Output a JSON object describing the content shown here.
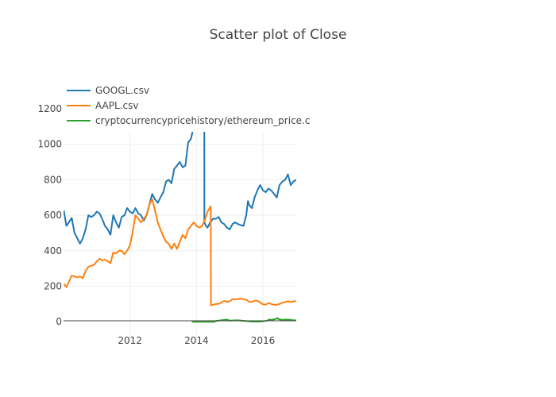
{
  "chart_data": {
    "type": "line",
    "title": "Scatter plot of Close",
    "xlabel": "",
    "ylabel": "",
    "xlim": [
      "2010-01-01",
      "2017-01-01"
    ],
    "ylim": [
      -120,
      1070
    ],
    "x_ticks": [
      "2012",
      "2014",
      "2016"
    ],
    "y_ticks": [
      "0",
      "200",
      "400",
      "600",
      "800",
      "1000",
      "1200"
    ],
    "grid": true,
    "legend_position": "top-left",
    "series": [
      {
        "name": "GOOGL.csv",
        "color": "#1f77b4",
        "points": [
          [
            "2010-01-04",
            626
          ],
          [
            "2010-02-01",
            540
          ],
          [
            "2010-03-01",
            560
          ],
          [
            "2010-04-01",
            585
          ],
          [
            "2010-05-01",
            500
          ],
          [
            "2010-06-01",
            470
          ],
          [
            "2010-07-01",
            440
          ],
          [
            "2010-08-01",
            470
          ],
          [
            "2010-09-01",
            520
          ],
          [
            "2010-10-01",
            600
          ],
          [
            "2010-11-01",
            590
          ],
          [
            "2010-12-01",
            600
          ],
          [
            "2011-01-01",
            620
          ],
          [
            "2011-02-01",
            610
          ],
          [
            "2011-03-01",
            580
          ],
          [
            "2011-04-01",
            540
          ],
          [
            "2011-05-01",
            520
          ],
          [
            "2011-06-01",
            490
          ],
          [
            "2011-07-01",
            600
          ],
          [
            "2011-08-01",
            560
          ],
          [
            "2011-09-01",
            530
          ],
          [
            "2011-10-01",
            590
          ],
          [
            "2011-11-01",
            600
          ],
          [
            "2011-12-01",
            640
          ],
          [
            "2012-01-01",
            620
          ],
          [
            "2012-02-01",
            610
          ],
          [
            "2012-03-01",
            640
          ],
          [
            "2012-04-01",
            610
          ],
          [
            "2012-05-01",
            600
          ],
          [
            "2012-06-01",
            570
          ],
          [
            "2012-07-01",
            600
          ],
          [
            "2012-08-01",
            660
          ],
          [
            "2012-09-01",
            720
          ],
          [
            "2012-10-01",
            690
          ],
          [
            "2012-11-01",
            670
          ],
          [
            "2012-12-01",
            700
          ],
          [
            "2013-01-01",
            730
          ],
          [
            "2013-02-01",
            790
          ],
          [
            "2013-03-01",
            800
          ],
          [
            "2013-04-01",
            780
          ],
          [
            "2013-05-01",
            860
          ],
          [
            "2013-06-01",
            880
          ],
          [
            "2013-07-01",
            900
          ],
          [
            "2013-08-01",
            870
          ],
          [
            "2013-09-01",
            880
          ],
          [
            "2013-10-01",
            1010
          ],
          [
            "2013-11-01",
            1030
          ],
          [
            "2013-12-01",
            1100
          ],
          [
            "2014-01-01",
            1120
          ],
          [
            "2014-02-01",
            1200
          ],
          [
            "2014-03-01",
            1150
          ],
          [
            "2014-03-27",
            1130
          ],
          [
            "2014-03-28",
            560
          ],
          [
            "2014-04-15",
            540
          ],
          [
            "2014-05-01",
            530
          ],
          [
            "2014-06-01",
            560
          ],
          [
            "2014-07-01",
            580
          ],
          [
            "2014-08-01",
            580
          ],
          [
            "2014-09-01",
            590
          ],
          [
            "2014-10-01",
            560
          ],
          [
            "2014-11-01",
            550
          ],
          [
            "2014-12-01",
            530
          ],
          [
            "2015-01-01",
            520
          ],
          [
            "2015-02-01",
            550
          ],
          [
            "2015-03-01",
            560
          ],
          [
            "2015-04-01",
            550
          ],
          [
            "2015-05-01",
            545
          ],
          [
            "2015-06-01",
            540
          ],
          [
            "2015-07-01",
            600
          ],
          [
            "2015-07-20",
            680
          ],
          [
            "2015-08-01",
            660
          ],
          [
            "2015-09-01",
            640
          ],
          [
            "2015-10-01",
            700
          ],
          [
            "2015-11-01",
            740
          ],
          [
            "2015-12-01",
            770
          ],
          [
            "2016-01-01",
            740
          ],
          [
            "2016-02-01",
            730
          ],
          [
            "2016-03-01",
            750
          ],
          [
            "2016-04-01",
            740
          ],
          [
            "2016-05-01",
            720
          ],
          [
            "2016-06-01",
            700
          ],
          [
            "2016-07-01",
            770
          ],
          [
            "2016-08-01",
            790
          ],
          [
            "2016-09-01",
            800
          ],
          [
            "2016-10-01",
            830
          ],
          [
            "2016-11-01",
            770
          ],
          [
            "2016-12-01",
            790
          ],
          [
            "2016-12-30",
            800
          ]
        ]
      },
      {
        "name": "AAPL.csv",
        "color": "#ff7f0e",
        "points": [
          [
            "2010-01-04",
            214
          ],
          [
            "2010-02-01",
            195
          ],
          [
            "2010-03-01",
            225
          ],
          [
            "2010-04-01",
            260
          ],
          [
            "2010-05-01",
            255
          ],
          [
            "2010-06-01",
            250
          ],
          [
            "2010-07-01",
            255
          ],
          [
            "2010-08-01",
            245
          ],
          [
            "2010-09-01",
            285
          ],
          [
            "2010-10-01",
            310
          ],
          [
            "2010-11-01",
            315
          ],
          [
            "2010-12-01",
            320
          ],
          [
            "2011-01-01",
            340
          ],
          [
            "2011-02-01",
            355
          ],
          [
            "2011-03-01",
            345
          ],
          [
            "2011-04-01",
            350
          ],
          [
            "2011-05-01",
            340
          ],
          [
            "2011-06-01",
            330
          ],
          [
            "2011-07-01",
            390
          ],
          [
            "2011-08-01",
            385
          ],
          [
            "2011-09-01",
            400
          ],
          [
            "2011-10-01",
            400
          ],
          [
            "2011-11-01",
            380
          ],
          [
            "2011-12-01",
            400
          ],
          [
            "2012-01-01",
            430
          ],
          [
            "2012-02-01",
            510
          ],
          [
            "2012-03-01",
            600
          ],
          [
            "2012-04-01",
            580
          ],
          [
            "2012-05-01",
            560
          ],
          [
            "2012-06-01",
            580
          ],
          [
            "2012-07-01",
            600
          ],
          [
            "2012-08-01",
            660
          ],
          [
            "2012-09-01",
            690
          ],
          [
            "2012-10-01",
            630
          ],
          [
            "2012-11-01",
            560
          ],
          [
            "2012-12-01",
            520
          ],
          [
            "2013-01-01",
            480
          ],
          [
            "2013-02-01",
            450
          ],
          [
            "2013-03-01",
            440
          ],
          [
            "2013-04-01",
            410
          ],
          [
            "2013-05-01",
            440
          ],
          [
            "2013-06-01",
            410
          ],
          [
            "2013-07-01",
            450
          ],
          [
            "2013-08-01",
            490
          ],
          [
            "2013-09-01",
            470
          ],
          [
            "2013-10-01",
            520
          ],
          [
            "2013-11-01",
            540
          ],
          [
            "2013-12-01",
            560
          ],
          [
            "2014-01-01",
            540
          ],
          [
            "2014-02-01",
            530
          ],
          [
            "2014-03-01",
            540
          ],
          [
            "2014-04-01",
            570
          ],
          [
            "2014-05-01",
            620
          ],
          [
            "2014-06-06",
            650
          ],
          [
            "2014-06-09",
            93
          ],
          [
            "2014-07-01",
            95
          ],
          [
            "2014-08-01",
            100
          ],
          [
            "2014-09-01",
            100
          ],
          [
            "2014-10-01",
            108
          ],
          [
            "2014-11-01",
            117
          ],
          [
            "2014-12-01",
            112
          ],
          [
            "2015-01-01",
            115
          ],
          [
            "2015-02-01",
            128
          ],
          [
            "2015-03-01",
            125
          ],
          [
            "2015-04-01",
            128
          ],
          [
            "2015-05-01",
            130
          ],
          [
            "2015-06-01",
            127
          ],
          [
            "2015-07-01",
            124
          ],
          [
            "2015-08-01",
            112
          ],
          [
            "2015-09-01",
            112
          ],
          [
            "2015-10-01",
            118
          ],
          [
            "2015-11-01",
            118
          ],
          [
            "2015-12-01",
            108
          ],
          [
            "2016-01-01",
            98
          ],
          [
            "2016-02-01",
            96
          ],
          [
            "2016-03-01",
            105
          ],
          [
            "2016-04-01",
            100
          ],
          [
            "2016-05-01",
            95
          ],
          [
            "2016-06-01",
            95
          ],
          [
            "2016-07-01",
            100
          ],
          [
            "2016-08-01",
            107
          ],
          [
            "2016-09-01",
            110
          ],
          [
            "2016-10-01",
            115
          ],
          [
            "2016-11-01",
            110
          ],
          [
            "2016-12-01",
            115
          ],
          [
            "2016-12-30",
            116
          ]
        ]
      },
      {
        "name": "cryptocurrencypricehistory/ethereum_price.c",
        "color": "#2ca02c",
        "points": [
          [
            "2013-11-10",
            0
          ],
          [
            "2014-06-01",
            0
          ],
          [
            "2014-07-15",
            0
          ],
          [
            "2014-08-01",
            4
          ],
          [
            "2014-10-01",
            8
          ],
          [
            "2014-12-01",
            12
          ],
          [
            "2015-01-01",
            6
          ],
          [
            "2015-04-01",
            8
          ],
          [
            "2015-08-07",
            2
          ],
          [
            "2015-09-01",
            1
          ],
          [
            "2015-12-01",
            1
          ],
          [
            "2016-01-01",
            2
          ],
          [
            "2016-02-15",
            6
          ],
          [
            "2016-03-10",
            12
          ],
          [
            "2016-04-01",
            10
          ],
          [
            "2016-05-15",
            14
          ],
          [
            "2016-06-12",
            20
          ],
          [
            "2016-06-20",
            14
          ],
          [
            "2016-08-01",
            10
          ],
          [
            "2016-09-01",
            12
          ],
          [
            "2016-10-01",
            12
          ],
          [
            "2016-11-01",
            10
          ],
          [
            "2016-12-01",
            8
          ],
          [
            "2016-12-30",
            8
          ]
        ]
      }
    ]
  }
}
